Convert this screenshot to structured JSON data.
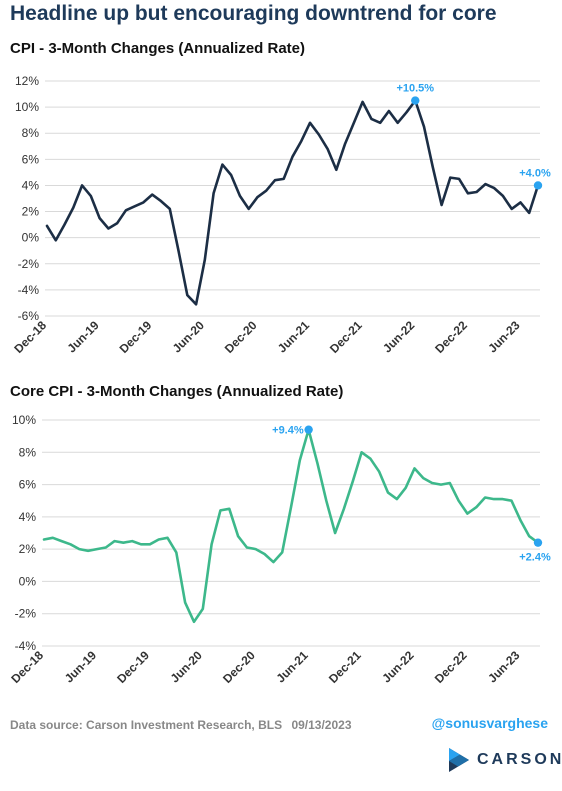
{
  "title": "Headline up but encouraging downtrend for core",
  "colors": {
    "title": "#1e3a5a",
    "cpi_line": "#1c2e45",
    "core_line": "#3db88b",
    "highlight": "#2aa3f0",
    "grid": "#d9d9d9"
  },
  "chart_data": [
    {
      "type": "line",
      "title": "CPI - 3-Month Changes (Annualized Rate)",
      "x_tick_labels": [
        "Dec-18",
        "Jun-19",
        "Dec-19",
        "Jun-20",
        "Dec-20",
        "Jun-21",
        "Dec-21",
        "Jun-22",
        "Dec-22",
        "Jun-23"
      ],
      "y_tick_labels": [
        "12%",
        "10%",
        "8%",
        "6%",
        "4%",
        "2%",
        "0%",
        "-2%",
        "-4%",
        "-6%"
      ],
      "ylim": [
        -6,
        12
      ],
      "grid": "horizontal",
      "series": [
        {
          "values": [
            0.9,
            -0.2,
            1.0,
            2.3,
            4.0,
            3.2,
            1.5,
            0.7,
            1.1,
            2.1,
            2.4,
            2.7,
            3.3,
            2.8,
            2.2,
            -1.0,
            -4.4,
            -5.1,
            -1.7,
            3.4,
            5.6,
            4.8,
            3.2,
            2.2,
            3.1,
            3.6,
            4.4,
            4.5,
            6.2,
            7.4,
            8.8,
            7.9,
            6.8,
            5.2,
            7.2,
            8.8,
            10.4,
            9.1,
            8.8,
            9.7,
            8.8,
            9.6,
            10.5,
            8.5,
            5.4,
            2.5,
            4.6,
            4.5,
            3.4,
            3.5,
            4.1,
            3.8,
            3.2,
            2.2,
            2.7,
            1.9,
            4.0
          ]
        }
      ],
      "annotations": [
        {
          "label": "+10.5%",
          "index": 42,
          "value": 10.5
        },
        {
          "label": "+4.0%",
          "index": 56,
          "value": 4.0
        }
      ]
    },
    {
      "type": "line",
      "title": "Core CPI - 3-Month Changes (Annualized Rate)",
      "x_tick_labels": [
        "Dec-18",
        "Jun-19",
        "Dec-19",
        "Jun-20",
        "Dec-20",
        "Jun-21",
        "Dec-21",
        "Jun-22",
        "Dec-22",
        "Jun-23"
      ],
      "y_tick_labels": [
        "10%",
        "8%",
        "6%",
        "4%",
        "2%",
        "0%",
        "-2%",
        "-4%"
      ],
      "ylim": [
        -4,
        10
      ],
      "grid": "horizontal",
      "series": [
        {
          "values": [
            2.6,
            2.7,
            2.5,
            2.3,
            2.0,
            1.9,
            2.0,
            2.1,
            2.5,
            2.4,
            2.5,
            2.3,
            2.3,
            2.6,
            2.7,
            1.8,
            -1.3,
            -2.5,
            -1.7,
            2.3,
            4.4,
            4.5,
            2.8,
            2.1,
            2.0,
            1.7,
            1.2,
            1.8,
            4.6,
            7.5,
            9.4,
            7.3,
            5.0,
            3.0,
            4.5,
            6.2,
            8.0,
            7.6,
            6.8,
            5.5,
            5.1,
            5.8,
            7.0,
            6.4,
            6.1,
            6.0,
            6.1,
            5.0,
            4.2,
            4.6,
            5.2,
            5.1,
            5.1,
            5.0,
            3.8,
            2.8,
            2.4
          ]
        }
      ],
      "annotations": [
        {
          "label": "+9.4%",
          "index": 30,
          "value": 9.4
        },
        {
          "label": "+2.4%",
          "index": 56,
          "value": 2.4
        }
      ]
    }
  ],
  "footer": {
    "source": "Data source: Carson Investment Research, BLS",
    "date": "09/13/2023",
    "handle": "@sonusvarghese",
    "logo_text": "CARSON"
  }
}
